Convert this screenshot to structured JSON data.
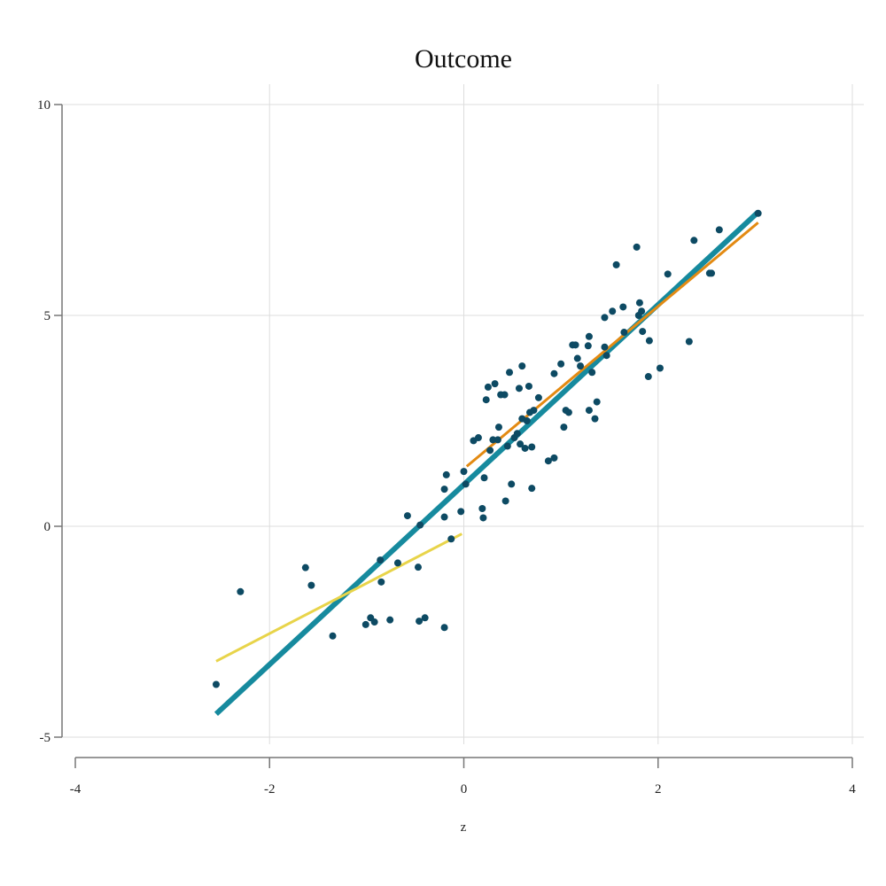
{
  "chart_data": {
    "type": "scatter",
    "title": "Outcome",
    "xlabel": "z",
    "ylabel": "",
    "xlim": [
      -4,
      4
    ],
    "ylim": [
      -5,
      10
    ],
    "x_ticks": [
      "-4",
      "-2",
      "0",
      "2",
      "4"
    ],
    "y_ticks": [
      "-5",
      "0",
      "5",
      "10"
    ],
    "grid": true,
    "colors": {
      "points": "#0d4a63",
      "overall_fit": "#168a9e",
      "positive_fit": "#e38a12",
      "negative_fit": "#e8d44a"
    },
    "points": [
      {
        "x": -2.55,
        "y": -3.75
      },
      {
        "x": -2.3,
        "y": -1.55
      },
      {
        "x": -1.63,
        "y": -0.98
      },
      {
        "x": -1.57,
        "y": -1.4
      },
      {
        "x": -1.35,
        "y": -2.6
      },
      {
        "x": -1.01,
        "y": -2.33
      },
      {
        "x": -0.96,
        "y": -2.17
      },
      {
        "x": -0.92,
        "y": -2.27
      },
      {
        "x": -0.86,
        "y": -0.8
      },
      {
        "x": -0.85,
        "y": -1.32
      },
      {
        "x": -0.76,
        "y": -2.22
      },
      {
        "x": -0.68,
        "y": -0.87
      },
      {
        "x": -0.58,
        "y": 0.25
      },
      {
        "x": -0.47,
        "y": -0.97
      },
      {
        "x": -0.46,
        "y": -2.25
      },
      {
        "x": -0.45,
        "y": 0.03
      },
      {
        "x": -0.4,
        "y": -2.17
      },
      {
        "x": -0.2,
        "y": -2.4
      },
      {
        "x": -0.13,
        "y": -0.3
      },
      {
        "x": -0.03,
        "y": 0.35
      },
      {
        "x": -0.2,
        "y": 0.22
      },
      {
        "x": -0.2,
        "y": 0.88
      },
      {
        "x": -0.18,
        "y": 1.22
      },
      {
        "x": 0.0,
        "y": 1.3
      },
      {
        "x": 0.02,
        "y": 1.0
      },
      {
        "x": 0.1,
        "y": 2.03
      },
      {
        "x": 0.15,
        "y": 2.1
      },
      {
        "x": 0.19,
        "y": 0.42
      },
      {
        "x": 0.2,
        "y": 0.2
      },
      {
        "x": 0.21,
        "y": 1.15
      },
      {
        "x": 0.23,
        "y": 3.0
      },
      {
        "x": 0.25,
        "y": 3.3
      },
      {
        "x": 0.27,
        "y": 1.8
      },
      {
        "x": 0.3,
        "y": 2.05
      },
      {
        "x": 0.32,
        "y": 3.38
      },
      {
        "x": 0.35,
        "y": 2.05
      },
      {
        "x": 0.36,
        "y": 2.35
      },
      {
        "x": 0.38,
        "y": 3.12
      },
      {
        "x": 0.42,
        "y": 3.12
      },
      {
        "x": 0.43,
        "y": 0.6
      },
      {
        "x": 0.45,
        "y": 1.9
      },
      {
        "x": 0.47,
        "y": 3.65
      },
      {
        "x": 0.49,
        "y": 1.0
      },
      {
        "x": 0.52,
        "y": 2.1
      },
      {
        "x": 0.55,
        "y": 2.2
      },
      {
        "x": 0.57,
        "y": 3.27
      },
      {
        "x": 0.58,
        "y": 1.95
      },
      {
        "x": 0.6,
        "y": 2.55
      },
      {
        "x": 0.6,
        "y": 3.8
      },
      {
        "x": 0.63,
        "y": 1.85
      },
      {
        "x": 0.65,
        "y": 2.5
      },
      {
        "x": 0.67,
        "y": 3.32
      },
      {
        "x": 0.68,
        "y": 2.7
      },
      {
        "x": 0.7,
        "y": 1.88
      },
      {
        "x": 0.7,
        "y": 0.9
      },
      {
        "x": 0.72,
        "y": 2.75
      },
      {
        "x": 0.77,
        "y": 3.05
      },
      {
        "x": 0.87,
        "y": 1.55
      },
      {
        "x": 0.93,
        "y": 1.62
      },
      {
        "x": 0.93,
        "y": 3.62
      },
      {
        "x": 1.0,
        "y": 3.85
      },
      {
        "x": 1.03,
        "y": 2.35
      },
      {
        "x": 1.05,
        "y": 2.75
      },
      {
        "x": 1.08,
        "y": 2.7
      },
      {
        "x": 1.12,
        "y": 4.3
      },
      {
        "x": 1.15,
        "y": 4.3
      },
      {
        "x": 1.17,
        "y": 3.98
      },
      {
        "x": 1.2,
        "y": 3.8
      },
      {
        "x": 1.28,
        "y": 4.28
      },
      {
        "x": 1.29,
        "y": 4.5
      },
      {
        "x": 1.29,
        "y": 2.75
      },
      {
        "x": 1.32,
        "y": 3.65
      },
      {
        "x": 1.35,
        "y": 2.55
      },
      {
        "x": 1.37,
        "y": 2.95
      },
      {
        "x": 1.45,
        "y": 4.95
      },
      {
        "x": 1.45,
        "y": 4.25
      },
      {
        "x": 1.47,
        "y": 4.05
      },
      {
        "x": 1.53,
        "y": 5.1
      },
      {
        "x": 1.57,
        "y": 6.2
      },
      {
        "x": 1.64,
        "y": 5.2
      },
      {
        "x": 1.65,
        "y": 4.6
      },
      {
        "x": 1.78,
        "y": 6.62
      },
      {
        "x": 1.8,
        "y": 5.0
      },
      {
        "x": 1.81,
        "y": 5.3
      },
      {
        "x": 1.83,
        "y": 5.1
      },
      {
        "x": 1.84,
        "y": 4.62
      },
      {
        "x": 1.9,
        "y": 3.55
      },
      {
        "x": 1.91,
        "y": 4.4
      },
      {
        "x": 2.02,
        "y": 3.75
      },
      {
        "x": 2.1,
        "y": 5.98
      },
      {
        "x": 2.32,
        "y": 4.38
      },
      {
        "x": 2.37,
        "y": 6.78
      },
      {
        "x": 2.53,
        "y": 6.0
      },
      {
        "x": 2.55,
        "y": 6.0
      },
      {
        "x": 2.63,
        "y": 7.03
      },
      {
        "x": 3.03,
        "y": 7.42
      }
    ],
    "fit_lines": [
      {
        "key": "overall_fit",
        "x": [
          -2.55,
          3.03
        ],
        "y": [
          -4.45,
          7.45
        ],
        "width": 6
      },
      {
        "key": "positive_fit",
        "x": [
          0.03,
          3.03
        ],
        "y": [
          1.42,
          7.2
        ],
        "width": 3
      },
      {
        "key": "negative_fit",
        "x": [
          -2.55,
          -0.02
        ],
        "y": [
          -3.2,
          -0.18
        ],
        "width": 3
      }
    ]
  }
}
